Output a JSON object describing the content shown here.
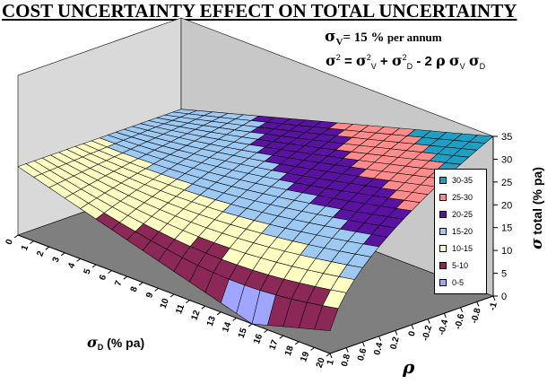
{
  "header": {
    "title": "COST UNCERTAINTY EFFECT  ON  TOTAL UNCERTAINTY",
    "sigma_v_symbol": "σ",
    "sigma_v_sub": "V",
    "sigma_v_value": "= 15 %",
    "sigma_v_unit": " per annum",
    "formula": {
      "sigma": "σ",
      "sq": "2",
      "v": "V",
      "d": "D",
      "plus": " + ",
      "minus": "  -  2 ",
      "equals": " = ",
      "rho": "ρ"
    }
  },
  "chart_data": {
    "type": "surface",
    "title": "COST UNCERTAINTY EFFECT  ON  TOTAL UNCERTAINTY",
    "x_axis": {
      "label_symbol": "σ",
      "label_sub": "D",
      "label_text": " (% pa)",
      "ticks": [
        "0",
        "1",
        "2",
        "3",
        "4",
        "5",
        "6",
        "7",
        "8",
        "9",
        "10",
        "11",
        "12",
        "13",
        "14",
        "15",
        "16",
        "17",
        "18",
        "19",
        "20"
      ]
    },
    "y_axis": {
      "label": "ρ",
      "ticks": [
        "1",
        "0.8",
        "0.6",
        "0.4",
        "0.2",
        "0",
        "-0.2",
        "-0.4",
        "-0.6",
        "-0.8",
        "-1"
      ]
    },
    "z_axis": {
      "label_symbol": "σ",
      "label_text": " total (% pa)",
      "ticks": [
        "0",
        "5",
        "10",
        "15",
        "20",
        "25",
        "30",
        "35"
      ],
      "range": [
        0,
        35
      ]
    },
    "sigma_v": 15,
    "sigma_d_range": [
      0,
      20
    ],
    "rho_range": [
      1,
      -1
    ],
    "legend": [
      {
        "label": "30-35",
        "color": "#1e9fc4"
      },
      {
        "label": "25-30",
        "color": "#ff8c8c"
      },
      {
        "label": "20-25",
        "color": "#5a12a0"
      },
      {
        "label": "15-20",
        "color": "#9ec9f2"
      },
      {
        "label": "10-15",
        "color": "#ffffc4"
      },
      {
        "label": "5-10",
        "color": "#8c2858"
      },
      {
        "label": "0-5",
        "color": "#a0a6ff"
      }
    ]
  }
}
